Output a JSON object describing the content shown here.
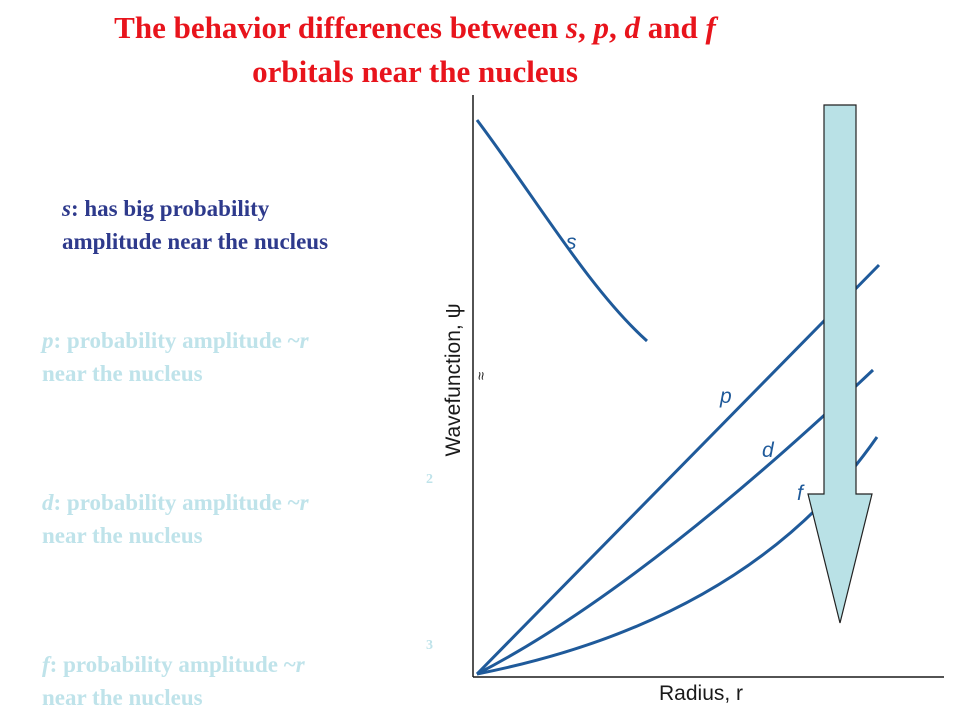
{
  "title": {
    "parts": [
      {
        "text": "The behavior differences between ",
        "italic": false
      },
      {
        "text": "s",
        "italic": true
      },
      {
        "text": ", ",
        "italic": false
      },
      {
        "text": "p",
        "italic": true
      },
      {
        "text": ", ",
        "italic": false
      },
      {
        "text": "d",
        "italic": true
      },
      {
        "text": " and ",
        "italic": false
      },
      {
        "text": "f",
        "italic": true
      }
    ],
    "line2": "orbitals near the nucleus"
  },
  "notes": {
    "s": {
      "orbital": "s",
      "line1": ": has big probability",
      "line2": "amplitude near the nucleus"
    },
    "p": {
      "orbital": "p",
      "line1": ": probability amplitude ~",
      "var": "r",
      "line2": "near the nucleus"
    },
    "d": {
      "orbital": "d",
      "line1": ": probability amplitude ~",
      "var": "r",
      "exponent": "2",
      "line2": "near the nucleus"
    },
    "f": {
      "orbital": "f",
      "line1": ": probability amplitude ~",
      "var": "r",
      "exponent": "3",
      "line2": "near the nucleus"
    }
  },
  "plot": {
    "ylabel": "Wavefunction, ψ",
    "xlabel": "Radius, r",
    "axis_break": "≈",
    "curve_labels": {
      "s": "s",
      "p": "p",
      "d": "d",
      "f": "f"
    }
  },
  "colors": {
    "title": "#e8141c",
    "note_s": "#2e3a8c",
    "note_faded": "#bfe3ea",
    "curve": "#1f5a9a",
    "arrow_fill": "#b9e1e6",
    "arrow_stroke": "#222222"
  }
}
